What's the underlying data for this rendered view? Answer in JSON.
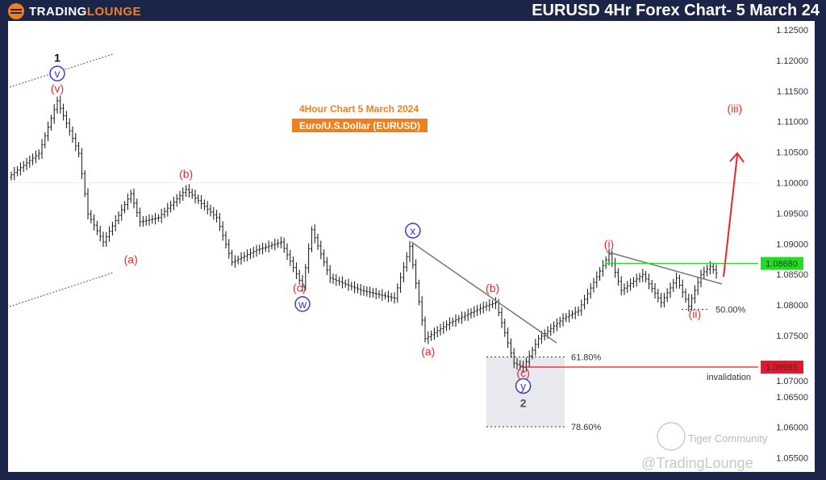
{
  "header": {
    "logo_main": "TRADING",
    "logo_accent": "LOUNGE",
    "title": "EURUSD 4Hr Forex Chart- 5 March 24"
  },
  "subtitle": {
    "line1": "4Hour Chart 5 March 2024",
    "line2": "Euro/U.S.Dollar (EURUSD)"
  },
  "watermark": {
    "community": "Tiger Community",
    "handle": "@TradingLounge"
  },
  "colors": {
    "frame": "#1b2548",
    "accent": "#f0801e",
    "wave_red": "#e8262c",
    "wave_blue": "#3a3ad8",
    "green_level": "#22dd22",
    "red_level": "#e8162a"
  },
  "chart_data": {
    "type": "candlestick",
    "ylim": [
      1.055,
      1.125
    ],
    "y_ticks": [
      "1.12500",
      "1.12000",
      "1.11500",
      "1.11000",
      "1.10500",
      "1.10000",
      "1.09500",
      "1.09000",
      "1.08500",
      "1.08000",
      "1.07500",
      "1.07000",
      "1.06500",
      "1.06000",
      "1.05500"
    ],
    "price_path": [
      [
        0,
        1.1009
      ],
      [
        10,
        1.1048
      ],
      [
        16,
        1.1134
      ],
      [
        23,
        1.1048
      ],
      [
        26,
        1.0949
      ],
      [
        31,
        1.0903
      ],
      [
        40,
        1.0982
      ],
      [
        43,
        1.0936
      ],
      [
        49,
        1.0943
      ],
      [
        58,
        1.0989
      ],
      [
        68,
        1.0943
      ],
      [
        73,
        1.087
      ],
      [
        81,
        1.089
      ],
      [
        89,
        1.0903
      ],
      [
        96,
        1.083
      ],
      [
        99,
        1.0923
      ],
      [
        105,
        1.0844
      ],
      [
        115,
        1.0824
      ],
      [
        126,
        1.0811
      ],
      [
        131,
        1.0896
      ],
      [
        136,
        1.0745
      ],
      [
        144,
        1.0771
      ],
      [
        155,
        1.0797
      ],
      [
        159,
        1.0804
      ],
      [
        165,
        1.0705
      ],
      [
        168,
        1.0698
      ],
      [
        173,
        1.0745
      ],
      [
        181,
        1.0778
      ],
      [
        186,
        1.0791
      ],
      [
        196,
        1.0883
      ],
      [
        200,
        1.0824
      ],
      [
        207,
        1.085
      ],
      [
        213,
        1.0804
      ],
      [
        218,
        1.0844
      ],
      [
        222,
        1.0798
      ],
      [
        226,
        1.085
      ],
      [
        229,
        1.0863
      ],
      [
        231,
        1.0852
      ]
    ],
    "levels": [
      {
        "label": "1.08680",
        "price": 1.0868,
        "color": "#22dd22"
      },
      {
        "label": "1.06985",
        "price": 1.06985,
        "color": "#e8162a",
        "note": "invalidation"
      }
    ],
    "fib": [
      {
        "label": "61.80%",
        "price": 1.0715
      },
      {
        "label": "78.60%",
        "price": 1.0601
      },
      {
        "label": "50.00%",
        "price": 1.0793
      }
    ],
    "wave_labels": [
      {
        "text": "1",
        "bar": 15,
        "price": 1.1198,
        "color": "#111111",
        "style": "plain"
      },
      {
        "text": "v",
        "bar": 15,
        "price": 1.1172,
        "color": "#3a3ad8",
        "style": "circle"
      },
      {
        "text": "(v)",
        "bar": 15,
        "price": 1.1148,
        "color": "#e8262c",
        "style": "plain"
      },
      {
        "text": "(b)",
        "bar": 57,
        "price": 1.1008,
        "color": "#e8262c",
        "style": "plain"
      },
      {
        "text": "(a)",
        "bar": 39,
        "price": 1.0868,
        "color": "#e8262c",
        "style": "plain"
      },
      {
        "text": "(c)",
        "bar": 94,
        "price": 1.0822,
        "color": "#e8262c",
        "style": "plain"
      },
      {
        "text": "w",
        "bar": 95,
        "price": 1.0795,
        "color": "#3a3ad8",
        "style": "circle"
      },
      {
        "text": "x",
        "bar": 131,
        "price": 1.0915,
        "color": "#3a3ad8",
        "style": "circle"
      },
      {
        "text": "(b)",
        "bar": 157,
        "price": 1.0821,
        "color": "#e8262c",
        "style": "plain"
      },
      {
        "text": "(a)",
        "bar": 136,
        "price": 1.0718,
        "color": "#e8262c",
        "style": "plain"
      },
      {
        "text": "(c)",
        "bar": 167,
        "price": 1.0683,
        "color": "#e8262c",
        "style": "plain"
      },
      {
        "text": "y",
        "bar": 167,
        "price": 1.0661,
        "color": "#3a3ad8",
        "style": "circle"
      },
      {
        "text": "2",
        "bar": 167,
        "price": 1.0633,
        "color": "#555555",
        "style": "plain"
      },
      {
        "text": "(i)",
        "bar": 195,
        "price": 1.0893,
        "color": "#e8262c",
        "style": "plain"
      },
      {
        "text": "(ii)",
        "bar": 223,
        "price": 1.0779,
        "color": "#e8262c",
        "style": "plain"
      },
      {
        "text": "(iii)",
        "bar": 236,
        "price": 1.1115,
        "color": "#e8262c",
        "style": "plain"
      }
    ]
  }
}
